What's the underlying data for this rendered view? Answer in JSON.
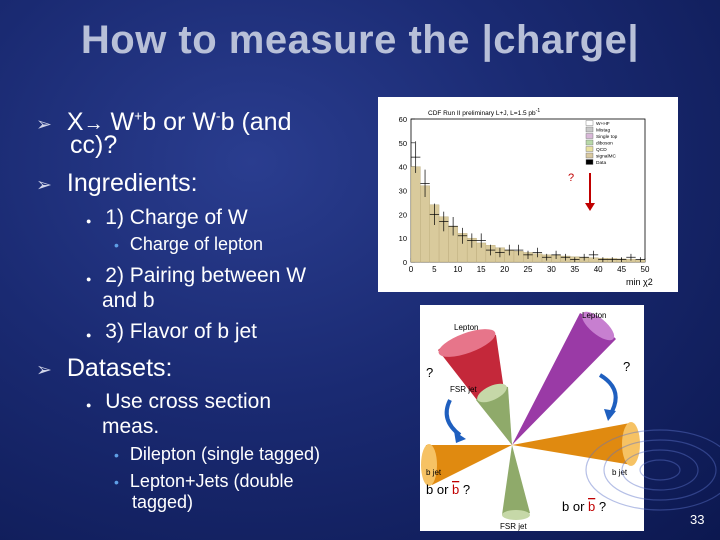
{
  "slide": {
    "title": "How to measure the |charge|",
    "bullets": {
      "b1_pre": "X",
      "b1_arrow": "→",
      "b1_w": " W",
      "b1_plus": "+",
      "b1_b": "b or W",
      "b1_minus": "-",
      "b1_rest": "b (and",
      "b1_line2": "cc)?",
      "b2": "Ingredients:",
      "i1": "1) Charge of W",
      "i1_sub": "Charge of lepton",
      "i2_line1": "2) Pairing between W",
      "i2_line2": "and b",
      "i3": "3) Flavor of b jet",
      "b3": "Datasets:",
      "d1_line1": "Use cross section",
      "d1_line2": "meas.",
      "d1_sub1": "Dilepton (single tagged)",
      "d1_sub2_line1": "Lepton+Jets (double",
      "d1_sub2_line2": "tagged)"
    },
    "page_number": "33"
  },
  "plot": {
    "header": "CDF Run II preliminary L+J, L=1.5 pb",
    "header_sup": "-1",
    "x_axis_label": "min χ2",
    "question": "?",
    "legend": [
      "W+HF",
      "Mistag",
      "Single top",
      "diboson",
      "QCD",
      "signalMC",
      "Data"
    ],
    "legend_colors": [
      "#ffffff",
      "#c8c8c8",
      "#d8b8d8",
      "#b8d8a8",
      "#e8e0a0",
      "#d8c8a0",
      "#000000"
    ]
  },
  "chart_data": {
    "type": "bar",
    "title": "CDF Run II preliminary L+J, L=1.5 pb-1",
    "xlabel": "min χ2",
    "ylabel": "",
    "x_ticks": [
      0,
      5,
      10,
      15,
      20,
      25,
      30,
      35,
      40,
      45,
      50
    ],
    "y_ticks": [
      0,
      10,
      20,
      30,
      40,
      50,
      60
    ],
    "xlim": [
      0,
      50
    ],
    "ylim": [
      0,
      60
    ],
    "x": [
      1,
      3,
      5,
      7,
      9,
      11,
      13,
      15,
      17,
      19,
      21,
      23,
      25,
      27,
      29,
      31,
      33,
      35,
      37,
      39,
      41,
      43,
      45,
      47,
      49
    ],
    "series": [
      {
        "name": "signalMC",
        "values": [
          40,
          32,
          24,
          19,
          15,
          12,
          10,
          8,
          7,
          6,
          5,
          4.5,
          4,
          3.5,
          3,
          2.8,
          2.5,
          2.2,
          2,
          1.8,
          1.6,
          1.5,
          1.3,
          1.2,
          1
        ]
      },
      {
        "name": "Data",
        "values": [
          44,
          33,
          20,
          17,
          15,
          11,
          9,
          9,
          5,
          4,
          5,
          5,
          3,
          4,
          2,
          3,
          2,
          1,
          2,
          3,
          1,
          1,
          1,
          2,
          1
        ]
      }
    ],
    "legend": [
      "W+HF",
      "Mistag",
      "Single top",
      "diboson",
      "QCD",
      "signalMC",
      "Data"
    ],
    "legend_position": "top-right"
  },
  "diagram": {
    "lepton_top": "Lepton",
    "lepton_left": "Lepton",
    "q_left": "?",
    "q_right": "?",
    "fsr_top": "FSR jet",
    "fsr_bottom": "FSR jet",
    "bjet_left": "b jet",
    "bjet_right": "b jet",
    "b_or_b_left_pre": "b or ",
    "b_or_b_left_b": "b",
    "b_or_b_left_q": " ?",
    "b_or_b_right_pre": "b or ",
    "b_or_b_right_b": "b",
    "b_or_b_right_q": " ?"
  }
}
